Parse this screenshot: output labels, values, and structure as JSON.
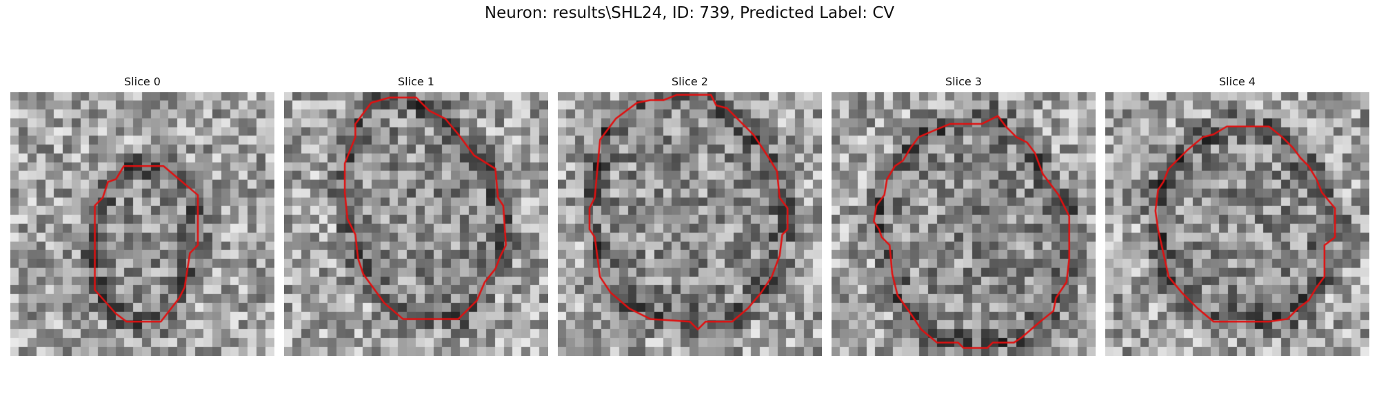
{
  "figure": {
    "title": "Neuron: results\\SHL24, ID: 739, Predicted Label: CV",
    "contour_color": "#e01010"
  },
  "panels": [
    {
      "title": "Slice 0",
      "seed": 11,
      "contour": [
        [
          0.43,
          0.28
        ],
        [
          0.58,
          0.28
        ],
        [
          0.71,
          0.39
        ],
        [
          0.71,
          0.58
        ],
        [
          0.68,
          0.61
        ],
        [
          0.66,
          0.74
        ],
        [
          0.64,
          0.78
        ],
        [
          0.57,
          0.87
        ],
        [
          0.44,
          0.87
        ],
        [
          0.4,
          0.84
        ],
        [
          0.32,
          0.75
        ],
        [
          0.32,
          0.43
        ],
        [
          0.35,
          0.4
        ],
        [
          0.37,
          0.34
        ],
        [
          0.4,
          0.33
        ]
      ]
    },
    {
      "title": "Slice 1",
      "seed": 27,
      "contour": [
        [
          0.33,
          0.04
        ],
        [
          0.4,
          0.02
        ],
        [
          0.5,
          0.02
        ],
        [
          0.55,
          0.07
        ],
        [
          0.61,
          0.1
        ],
        [
          0.66,
          0.16
        ],
        [
          0.72,
          0.24
        ],
        [
          0.8,
          0.29
        ],
        [
          0.81,
          0.4
        ],
        [
          0.83,
          0.43
        ],
        [
          0.84,
          0.58
        ],
        [
          0.82,
          0.62
        ],
        [
          0.8,
          0.67
        ],
        [
          0.76,
          0.72
        ],
        [
          0.73,
          0.79
        ],
        [
          0.66,
          0.86
        ],
        [
          0.56,
          0.86
        ],
        [
          0.45,
          0.86
        ],
        [
          0.38,
          0.8
        ],
        [
          0.3,
          0.69
        ],
        [
          0.28,
          0.63
        ],
        [
          0.27,
          0.54
        ],
        [
          0.24,
          0.48
        ],
        [
          0.23,
          0.38
        ],
        [
          0.23,
          0.27
        ],
        [
          0.27,
          0.17
        ],
        [
          0.27,
          0.12
        ]
      ]
    },
    {
      "title": "Slice 2",
      "seed": 53,
      "contour": [
        [
          0.3,
          0.04
        ],
        [
          0.35,
          0.03
        ],
        [
          0.4,
          0.03
        ],
        [
          0.45,
          0.01
        ],
        [
          0.58,
          0.01
        ],
        [
          0.6,
          0.05
        ],
        [
          0.64,
          0.06
        ],
        [
          0.68,
          0.1
        ],
        [
          0.74,
          0.16
        ],
        [
          0.8,
          0.25
        ],
        [
          0.83,
          0.3
        ],
        [
          0.84,
          0.4
        ],
        [
          0.87,
          0.44
        ],
        [
          0.87,
          0.52
        ],
        [
          0.85,
          0.54
        ],
        [
          0.84,
          0.62
        ],
        [
          0.81,
          0.7
        ],
        [
          0.77,
          0.76
        ],
        [
          0.72,
          0.82
        ],
        [
          0.66,
          0.87
        ],
        [
          0.56,
          0.87
        ],
        [
          0.53,
          0.9
        ],
        [
          0.5,
          0.87
        ],
        [
          0.35,
          0.86
        ],
        [
          0.27,
          0.82
        ],
        [
          0.2,
          0.76
        ],
        [
          0.16,
          0.7
        ],
        [
          0.14,
          0.55
        ],
        [
          0.12,
          0.52
        ],
        [
          0.12,
          0.44
        ],
        [
          0.14,
          0.4
        ],
        [
          0.16,
          0.18
        ],
        [
          0.22,
          0.1
        ]
      ]
    },
    {
      "title": "Slice 3",
      "seed": 81,
      "contour": [
        [
          0.4,
          0.14
        ],
        [
          0.45,
          0.12
        ],
        [
          0.57,
          0.12
        ],
        [
          0.63,
          0.09
        ],
        [
          0.66,
          0.13
        ],
        [
          0.7,
          0.17
        ],
        [
          0.74,
          0.19
        ],
        [
          0.77,
          0.23
        ],
        [
          0.8,
          0.31
        ],
        [
          0.86,
          0.39
        ],
        [
          0.9,
          0.47
        ],
        [
          0.9,
          0.63
        ],
        [
          0.89,
          0.72
        ],
        [
          0.85,
          0.78
        ],
        [
          0.84,
          0.83
        ],
        [
          0.79,
          0.87
        ],
        [
          0.72,
          0.93
        ],
        [
          0.69,
          0.95
        ],
        [
          0.61,
          0.95
        ],
        [
          0.59,
          0.97
        ],
        [
          0.5,
          0.97
        ],
        [
          0.48,
          0.95
        ],
        [
          0.4,
          0.95
        ],
        [
          0.34,
          0.9
        ],
        [
          0.3,
          0.84
        ],
        [
          0.25,
          0.77
        ],
        [
          0.23,
          0.69
        ],
        [
          0.22,
          0.58
        ],
        [
          0.19,
          0.55
        ],
        [
          0.18,
          0.52
        ],
        [
          0.16,
          0.49
        ],
        [
          0.17,
          0.43
        ],
        [
          0.2,
          0.39
        ],
        [
          0.21,
          0.33
        ],
        [
          0.24,
          0.28
        ],
        [
          0.27,
          0.26
        ],
        [
          0.3,
          0.21
        ],
        [
          0.33,
          0.17
        ]
      ]
    },
    {
      "title": "Slice 4",
      "seed": 97,
      "contour": [
        [
          0.37,
          0.17
        ],
        [
          0.41,
          0.16
        ],
        [
          0.46,
          0.13
        ],
        [
          0.62,
          0.13
        ],
        [
          0.67,
          0.17
        ],
        [
          0.71,
          0.21
        ],
        [
          0.74,
          0.25
        ],
        [
          0.77,
          0.28
        ],
        [
          0.8,
          0.33
        ],
        [
          0.82,
          0.38
        ],
        [
          0.87,
          0.44
        ],
        [
          0.87,
          0.55
        ],
        [
          0.83,
          0.58
        ],
        [
          0.83,
          0.7
        ],
        [
          0.8,
          0.74
        ],
        [
          0.77,
          0.79
        ],
        [
          0.73,
          0.82
        ],
        [
          0.69,
          0.86
        ],
        [
          0.62,
          0.87
        ],
        [
          0.57,
          0.87
        ],
        [
          0.41,
          0.87
        ],
        [
          0.35,
          0.82
        ],
        [
          0.29,
          0.76
        ],
        [
          0.24,
          0.7
        ],
        [
          0.22,
          0.61
        ],
        [
          0.2,
          0.52
        ],
        [
          0.19,
          0.45
        ],
        [
          0.2,
          0.37
        ],
        [
          0.22,
          0.34
        ],
        [
          0.24,
          0.29
        ],
        [
          0.27,
          0.26
        ],
        [
          0.31,
          0.22
        ]
      ]
    }
  ]
}
